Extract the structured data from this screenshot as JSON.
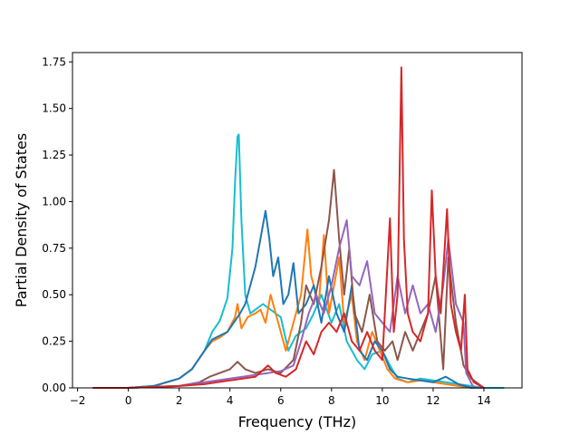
{
  "chart_data": {
    "type": "line",
    "title": "",
    "xlabel": "Frequency (THz)",
    "ylabel": "Partial Density of States",
    "xlim": [
      -2.2,
      15.5
    ],
    "ylim": [
      0,
      1.8
    ],
    "xticks": [
      -2,
      0,
      2,
      4,
      6,
      8,
      10,
      12,
      14
    ],
    "xtick_labels": [
      "−2",
      "0",
      "2",
      "4",
      "6",
      "8",
      "10",
      "12",
      "14"
    ],
    "yticks": [
      0,
      0.25,
      0.5,
      0.75,
      1.0,
      1.25,
      1.5,
      1.75
    ],
    "ytick_labels": [
      "0.00",
      "0.25",
      "0.50",
      "0.75",
      "1.00",
      "1.25",
      "1.50",
      "1.75"
    ],
    "grid": false,
    "legend": "none",
    "series": [
      {
        "color": "#17becf",
        "points": [
          [
            -1.4,
            0
          ],
          [
            0,
            0
          ],
          [
            1,
            0.01
          ],
          [
            2,
            0.05
          ],
          [
            2.5,
            0.1
          ],
          [
            3,
            0.2
          ],
          [
            3.3,
            0.3
          ],
          [
            3.6,
            0.36
          ],
          [
            3.9,
            0.48
          ],
          [
            4.1,
            0.75
          ],
          [
            4.2,
            1.1
          ],
          [
            4.3,
            1.35
          ],
          [
            4.35,
            1.36
          ],
          [
            4.45,
            0.9
          ],
          [
            4.6,
            0.5
          ],
          [
            4.8,
            0.4
          ],
          [
            5,
            0.42
          ],
          [
            5.3,
            0.45
          ],
          [
            5.6,
            0.42
          ],
          [
            6,
            0.38
          ],
          [
            6.3,
            0.2
          ],
          [
            6.6,
            0.28
          ],
          [
            7,
            0.32
          ],
          [
            7.3,
            0.4
          ],
          [
            7.6,
            0.5
          ],
          [
            8,
            0.35
          ],
          [
            8.3,
            0.45
          ],
          [
            8.6,
            0.25
          ],
          [
            9,
            0.15
          ],
          [
            9.3,
            0.1
          ],
          [
            9.6,
            0.18
          ],
          [
            10,
            0.2
          ],
          [
            10.3,
            0.12
          ],
          [
            10.6,
            0.05
          ],
          [
            11,
            0.03
          ],
          [
            11.5,
            0.05
          ],
          [
            12,
            0.04
          ],
          [
            12.5,
            0.03
          ],
          [
            13,
            0.02
          ],
          [
            13.5,
            0.01
          ],
          [
            14,
            0
          ],
          [
            14.8,
            0
          ]
        ]
      },
      {
        "color": "#ff7f0e",
        "points": [
          [
            -1.4,
            0
          ],
          [
            0,
            0
          ],
          [
            1,
            0.01
          ],
          [
            2,
            0.05
          ],
          [
            2.5,
            0.1
          ],
          [
            3,
            0.2
          ],
          [
            3.3,
            0.25
          ],
          [
            3.6,
            0.27
          ],
          [
            3.9,
            0.3
          ],
          [
            4.2,
            0.38
          ],
          [
            4.3,
            0.45
          ],
          [
            4.45,
            0.32
          ],
          [
            4.7,
            0.38
          ],
          [
            5,
            0.4
          ],
          [
            5.2,
            0.42
          ],
          [
            5.4,
            0.35
          ],
          [
            5.6,
            0.5
          ],
          [
            5.9,
            0.35
          ],
          [
            6.2,
            0.2
          ],
          [
            6.5,
            0.35
          ],
          [
            6.8,
            0.5
          ],
          [
            7.05,
            0.85
          ],
          [
            7.2,
            0.6
          ],
          [
            7.5,
            0.45
          ],
          [
            7.7,
            0.82
          ],
          [
            7.9,
            0.4
          ],
          [
            8.1,
            0.55
          ],
          [
            8.3,
            0.7
          ],
          [
            8.5,
            0.35
          ],
          [
            8.8,
            0.5
          ],
          [
            9,
            0.25
          ],
          [
            9.3,
            0.15
          ],
          [
            9.6,
            0.3
          ],
          [
            9.9,
            0.2
          ],
          [
            10.2,
            0.1
          ],
          [
            10.5,
            0.05
          ],
          [
            11,
            0.03
          ],
          [
            11.5,
            0.04
          ],
          [
            12,
            0.03
          ],
          [
            12.5,
            0.02
          ],
          [
            13,
            0.01
          ],
          [
            13.5,
            0
          ],
          [
            14,
            0
          ]
        ]
      },
      {
        "color": "#1f77b4",
        "points": [
          [
            -1.4,
            0
          ],
          [
            0,
            0
          ],
          [
            1,
            0.01
          ],
          [
            2,
            0.05
          ],
          [
            2.5,
            0.1
          ],
          [
            3,
            0.2
          ],
          [
            3.3,
            0.26
          ],
          [
            3.6,
            0.28
          ],
          [
            3.9,
            0.3
          ],
          [
            4.2,
            0.36
          ],
          [
            4.4,
            0.4
          ],
          [
            4.6,
            0.45
          ],
          [
            4.8,
            0.55
          ],
          [
            5,
            0.65
          ],
          [
            5.2,
            0.8
          ],
          [
            5.4,
            0.95
          ],
          [
            5.55,
            0.8
          ],
          [
            5.7,
            0.6
          ],
          [
            5.9,
            0.7
          ],
          [
            6.1,
            0.45
          ],
          [
            6.3,
            0.5
          ],
          [
            6.5,
            0.67
          ],
          [
            6.7,
            0.4
          ],
          [
            7,
            0.45
          ],
          [
            7.3,
            0.55
          ],
          [
            7.6,
            0.35
          ],
          [
            7.9,
            0.6
          ],
          [
            8.2,
            0.4
          ],
          [
            8.5,
            0.3
          ],
          [
            8.8,
            0.55
          ],
          [
            9.1,
            0.2
          ],
          [
            9.4,
            0.15
          ],
          [
            9.7,
            0.25
          ],
          [
            10,
            0.2
          ],
          [
            10.3,
            0.1
          ],
          [
            10.6,
            0.06
          ],
          [
            11,
            0.05
          ],
          [
            11.5,
            0.04
          ],
          [
            12,
            0.03
          ],
          [
            12.5,
            0.06
          ],
          [
            13,
            0.02
          ],
          [
            13.5,
            0
          ],
          [
            14,
            0
          ]
        ]
      },
      {
        "color": "#8c564b",
        "points": [
          [
            -1.4,
            0
          ],
          [
            0,
            0
          ],
          [
            2,
            0.01
          ],
          [
            2.8,
            0.03
          ],
          [
            3.2,
            0.06
          ],
          [
            3.6,
            0.08
          ],
          [
            4,
            0.1
          ],
          [
            4.3,
            0.14
          ],
          [
            4.6,
            0.1
          ],
          [
            5,
            0.08
          ],
          [
            5.5,
            0.1
          ],
          [
            6,
            0.08
          ],
          [
            6.5,
            0.15
          ],
          [
            6.8,
            0.35
          ],
          [
            7,
            0.55
          ],
          [
            7.3,
            0.45
          ],
          [
            7.6,
            0.65
          ],
          [
            7.9,
            0.9
          ],
          [
            8.1,
            1.17
          ],
          [
            8.3,
            0.8
          ],
          [
            8.5,
            0.5
          ],
          [
            8.7,
            0.75
          ],
          [
            8.9,
            0.4
          ],
          [
            9.2,
            0.3
          ],
          [
            9.5,
            0.5
          ],
          [
            9.8,
            0.25
          ],
          [
            10.1,
            0.2
          ],
          [
            10.4,
            0.25
          ],
          [
            10.6,
            0.15
          ],
          [
            10.9,
            0.3
          ],
          [
            11.2,
            0.2
          ],
          [
            11.5,
            0.3
          ],
          [
            11.8,
            0.4
          ],
          [
            12.1,
            0.6
          ],
          [
            12.4,
            0.1
          ],
          [
            12.6,
            0.7
          ],
          [
            12.9,
            0.35
          ],
          [
            13.2,
            0.12
          ],
          [
            13.5,
            0.05
          ],
          [
            14,
            0
          ]
        ]
      },
      {
        "color": "#9467bd",
        "points": [
          [
            -1.4,
            0
          ],
          [
            0,
            0
          ],
          [
            2,
            0.01
          ],
          [
            3,
            0.03
          ],
          [
            3.5,
            0.04
          ],
          [
            4,
            0.05
          ],
          [
            4.5,
            0.06
          ],
          [
            5,
            0.07
          ],
          [
            5.5,
            0.08
          ],
          [
            6,
            0.09
          ],
          [
            6.5,
            0.12
          ],
          [
            6.8,
            0.25
          ],
          [
            7.1,
            0.4
          ],
          [
            7.4,
            0.5
          ],
          [
            7.7,
            0.4
          ],
          [
            8,
            0.55
          ],
          [
            8.3,
            0.75
          ],
          [
            8.6,
            0.9
          ],
          [
            8.8,
            0.6
          ],
          [
            9.1,
            0.55
          ],
          [
            9.4,
            0.68
          ],
          [
            9.7,
            0.4
          ],
          [
            10,
            0.35
          ],
          [
            10.3,
            0.3
          ],
          [
            10.6,
            0.6
          ],
          [
            10.9,
            0.4
          ],
          [
            11.2,
            0.55
          ],
          [
            11.5,
            0.4
          ],
          [
            11.8,
            0.45
          ],
          [
            12.1,
            0.3
          ],
          [
            12.4,
            0.55
          ],
          [
            12.6,
            0.8
          ],
          [
            12.9,
            0.45
          ],
          [
            13.2,
            0.35
          ],
          [
            13.3,
            0.08
          ],
          [
            13.6,
            0
          ],
          [
            14,
            0
          ]
        ]
      },
      {
        "color": "#d62728",
        "points": [
          [
            -1.4,
            0
          ],
          [
            0,
            0
          ],
          [
            2,
            0.01
          ],
          [
            3,
            0.02
          ],
          [
            3.5,
            0.03
          ],
          [
            4,
            0.04
          ],
          [
            4.5,
            0.05
          ],
          [
            5,
            0.06
          ],
          [
            5.5,
            0.12
          ],
          [
            5.8,
            0.08
          ],
          [
            6.2,
            0.06
          ],
          [
            6.6,
            0.1
          ],
          [
            7,
            0.25
          ],
          [
            7.3,
            0.18
          ],
          [
            7.6,
            0.3
          ],
          [
            7.9,
            0.35
          ],
          [
            8.2,
            0.3
          ],
          [
            8.5,
            0.4
          ],
          [
            8.8,
            0.25
          ],
          [
            9.1,
            0.2
          ],
          [
            9.4,
            0.3
          ],
          [
            9.7,
            0.2
          ],
          [
            10,
            0.15
          ],
          [
            10.3,
            0.91
          ],
          [
            10.45,
            0.3
          ],
          [
            10.6,
            0.5
          ],
          [
            10.75,
            1.72
          ],
          [
            10.85,
            0.8
          ],
          [
            11,
            0.4
          ],
          [
            11.2,
            0.3
          ],
          [
            11.5,
            0.25
          ],
          [
            11.8,
            0.4
          ],
          [
            11.95,
            1.06
          ],
          [
            12.1,
            0.6
          ],
          [
            12.3,
            0.4
          ],
          [
            12.55,
            0.96
          ],
          [
            12.7,
            0.45
          ],
          [
            12.9,
            0.3
          ],
          [
            13.1,
            0.2
          ],
          [
            13.25,
            0.5
          ],
          [
            13.35,
            0.1
          ],
          [
            13.6,
            0.03
          ],
          [
            14,
            0
          ]
        ]
      }
    ]
  }
}
